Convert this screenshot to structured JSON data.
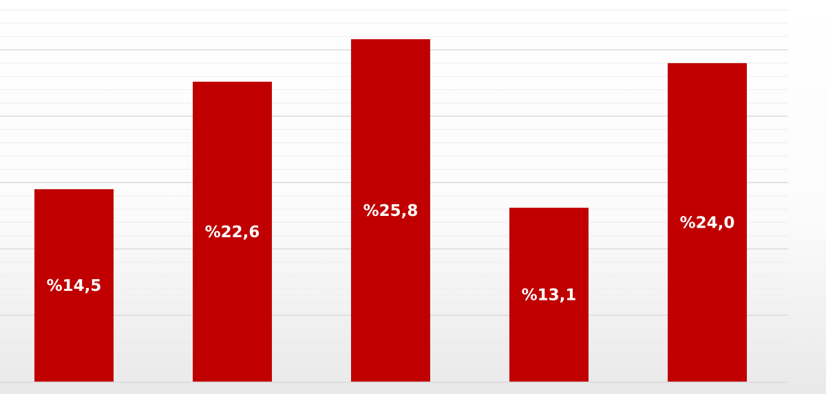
{
  "chart_data": {
    "type": "bar",
    "categories": [
      "",
      "",
      "",
      "",
      ""
    ],
    "values": [
      14.5,
      22.6,
      25.8,
      13.1,
      24.0
    ],
    "data_labels": [
      "%14,5",
      "%22,6",
      "%25,8",
      "%13,1",
      "%24,0"
    ],
    "title": "",
    "xlabel": "",
    "ylabel": "",
    "ylim": [
      0,
      28
    ],
    "grid": true,
    "bar_color": "#c00000",
    "label_color": "#ffffff",
    "gridline_color": "#d9d9d9"
  }
}
